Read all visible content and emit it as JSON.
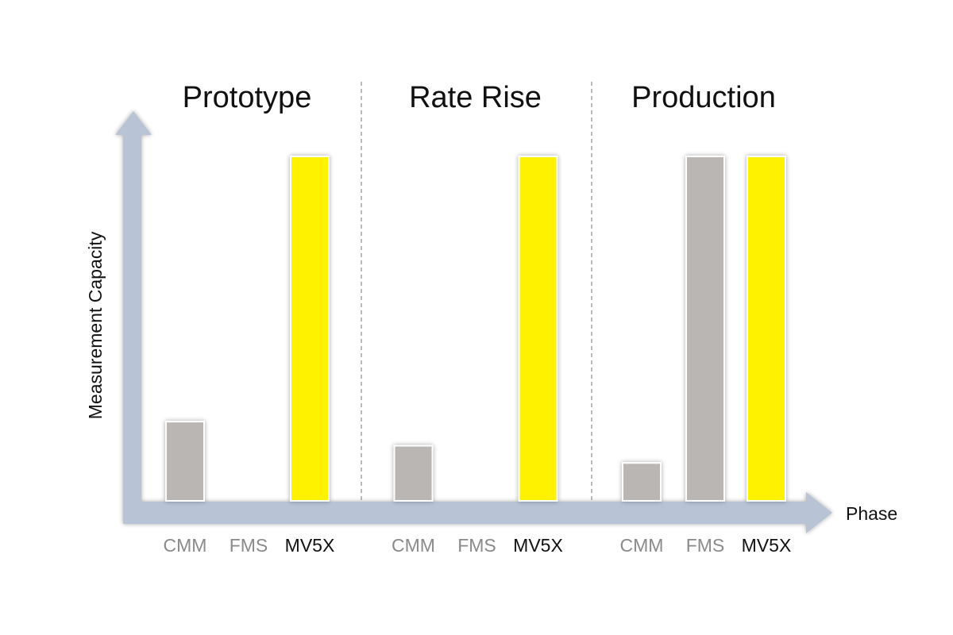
{
  "chart_data": {
    "type": "grouped-bar",
    "y_label": "Measurement Capacity",
    "x_label": "Phase",
    "categories": [
      "CMM",
      "FMS",
      "MV5X"
    ],
    "colors": [
      "#bab6b3",
      "#bab6b3",
      "#fff200"
    ],
    "label_colors": [
      "#8a8a8a",
      "#8a8a8a",
      "#111111"
    ],
    "groups": [
      {
        "name": "Prototype",
        "values": [
          23,
          0,
          100
        ]
      },
      {
        "name": "Rate Rise",
        "values": [
          16,
          0,
          100
        ]
      },
      {
        "name": "Production",
        "values": [
          11,
          100,
          100
        ]
      }
    ],
    "ylim": [
      0,
      112
    ]
  }
}
